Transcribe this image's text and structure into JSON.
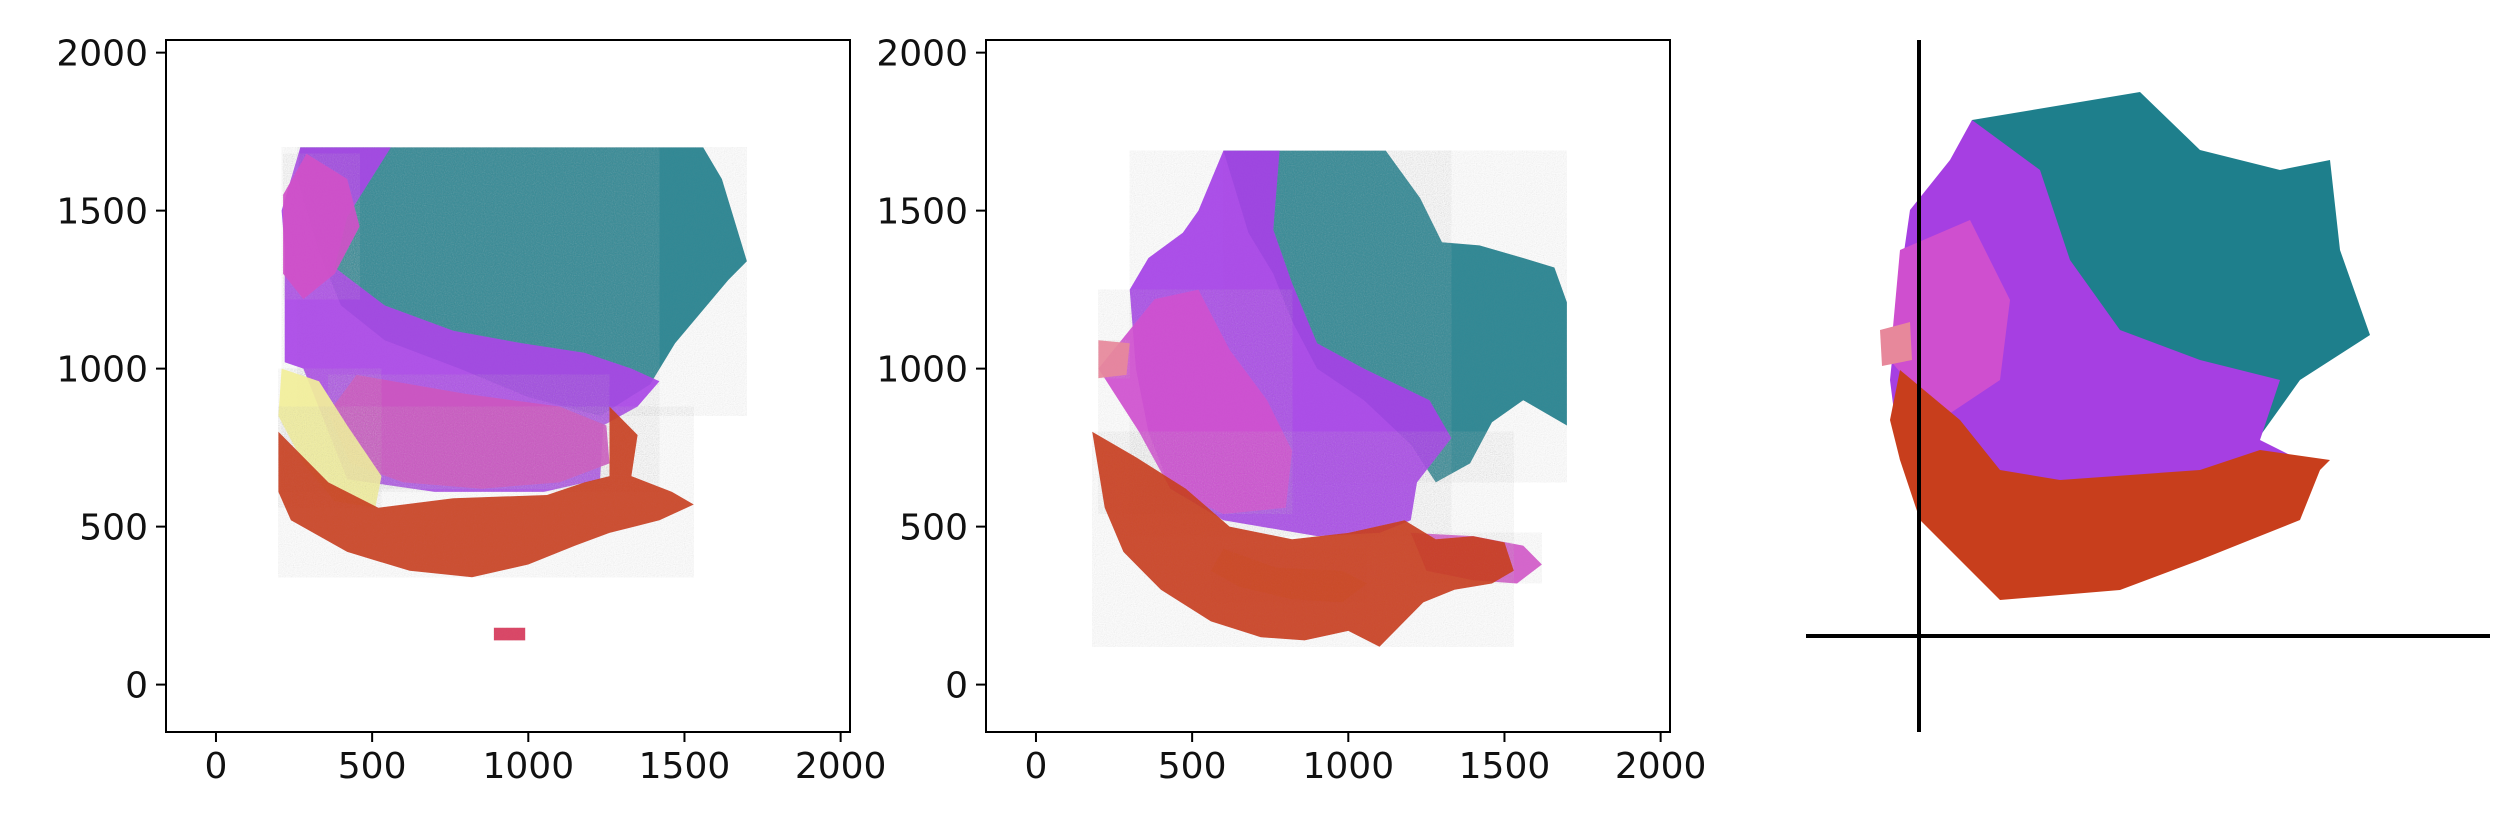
{
  "figure": {
    "background": "#ffffff"
  },
  "chart_data": [
    {
      "type": "scatter",
      "title": "",
      "xlabel": "",
      "ylabel": "",
      "xlim": [
        -160,
        2030
      ],
      "ylim": [
        -150,
        2040
      ],
      "xticks": [
        "0",
        "500",
        "1000",
        "1500",
        "2000"
      ],
      "yticks": [
        "0",
        "500",
        "1000",
        "1500",
        "2000"
      ],
      "xtick_values": [
        0,
        500,
        1000,
        1500,
        2000
      ],
      "ytick_values": [
        0,
        500,
        1000,
        1500,
        2000
      ],
      "frame": "box",
      "grid": false,
      "point_style": "hexagonal spot grid, RGB-encoded",
      "regions": [
        {
          "name": "teal",
          "color": "#1e7f8c",
          "polygon": [
            [
              270,
              1700
            ],
            [
              1560,
              1700
            ],
            [
              1620,
              1600
            ],
            [
              1700,
              1340
            ],
            [
              1640,
              1280
            ],
            [
              1470,
              1080
            ],
            [
              1390,
              950
            ],
            [
              1230,
              850
            ],
            [
              1000,
              910
            ],
            [
              780,
              1000
            ],
            [
              540,
              1090
            ],
            [
              400,
              1200
            ],
            [
              330,
              1370
            ],
            [
              260,
              1600
            ]
          ]
        },
        {
          "name": "violet",
          "color": "#a944e6",
          "polygon": [
            [
              270,
              1700
            ],
            [
              560,
              1700
            ],
            [
              420,
              1480
            ],
            [
              380,
              1320
            ],
            [
              540,
              1200
            ],
            [
              760,
              1120
            ],
            [
              980,
              1080
            ],
            [
              1180,
              1050
            ],
            [
              1330,
              1000
            ],
            [
              1420,
              960
            ],
            [
              1350,
              880
            ],
            [
              1240,
              820
            ],
            [
              1230,
              650
            ],
            [
              1050,
              610
            ],
            [
              700,
              610
            ],
            [
              420,
              650
            ],
            [
              280,
              1000
            ],
            [
              220,
              1020
            ],
            [
              220,
              1380
            ],
            [
              210,
              1500
            ]
          ]
        },
        {
          "name": "magenta",
          "color": "#d04fc8",
          "polygon": [
            [
              290,
              1680
            ],
            [
              420,
              1600
            ],
            [
              460,
              1450
            ],
            [
              380,
              1300
            ],
            [
              280,
              1220
            ],
            [
              215,
              1300
            ],
            [
              215,
              1550
            ]
          ]
        },
        {
          "name": "magenta-lower",
          "color": "#cc55bf",
          "polygon": [
            [
              450,
              980
            ],
            [
              800,
              920
            ],
            [
              1100,
              880
            ],
            [
              1250,
              820
            ],
            [
              1260,
              700
            ],
            [
              1100,
              640
            ],
            [
              850,
              620
            ],
            [
              600,
              640
            ],
            [
              430,
              700
            ],
            [
              360,
              860
            ]
          ]
        },
        {
          "name": "yellow",
          "color": "#f2ef9a",
          "polygon": [
            [
              210,
              1000
            ],
            [
              330,
              960
            ],
            [
              420,
              820
            ],
            [
              530,
              660
            ],
            [
              510,
              560
            ],
            [
              380,
              580
            ],
            [
              280,
              700
            ],
            [
              200,
              850
            ]
          ]
        },
        {
          "name": "red",
          "color": "#c8401e",
          "polygon": [
            [
              200,
              800
            ],
            [
              360,
              640
            ],
            [
              520,
              560
            ],
            [
              760,
              590
            ],
            [
              1060,
              600
            ],
            [
              1180,
              640
            ],
            [
              1260,
              660
            ],
            [
              1260,
              880
            ],
            [
              1350,
              790
            ],
            [
              1330,
              660
            ],
            [
              1460,
              610
            ],
            [
              1530,
              570
            ],
            [
              1420,
              520
            ],
            [
              1260,
              480
            ],
            [
              1150,
              440
            ],
            [
              1000,
              380
            ],
            [
              820,
              340
            ],
            [
              620,
              360
            ],
            [
              420,
              420
            ],
            [
              240,
              520
            ],
            [
              200,
              610
            ]
          ]
        },
        {
          "name": "red-small",
          "color": "#d6365a",
          "polygon": [
            [
              890,
              180
            ],
            [
              990,
              180
            ],
            [
              990,
              140
            ],
            [
              890,
              140
            ]
          ]
        }
      ]
    },
    {
      "type": "scatter",
      "title": "",
      "xlabel": "",
      "ylabel": "",
      "xlim": [
        -160,
        2030
      ],
      "ylim": [
        -150,
        2040
      ],
      "xticks": [
        "0",
        "500",
        "1000",
        "1500",
        "2000"
      ],
      "yticks": [
        "0",
        "500",
        "1000",
        "1500",
        "2000"
      ],
      "xtick_values": [
        0,
        500,
        1000,
        1500,
        2000
      ],
      "ytick_values": [
        0,
        500,
        1000,
        1500,
        2000
      ],
      "frame": "box",
      "grid": false,
      "point_style": "hexagonal spot grid, RGB-encoded",
      "regions": [
        {
          "name": "teal",
          "color": "#1e7f8c",
          "polygon": [
            [
              600,
              1690
            ],
            [
              1120,
              1690
            ],
            [
              1230,
              1540
            ],
            [
              1300,
              1400
            ],
            [
              1420,
              1390
            ],
            [
              1560,
              1350
            ],
            [
              1660,
              1320
            ],
            [
              1700,
              1210
            ],
            [
              1700,
              820
            ],
            [
              1560,
              900
            ],
            [
              1460,
              830
            ],
            [
              1390,
              700
            ],
            [
              1280,
              640
            ],
            [
              1200,
              760
            ],
            [
              1050,
              900
            ],
            [
              900,
              1000
            ],
            [
              820,
              1150
            ],
            [
              760,
              1300
            ],
            [
              680,
              1430
            ]
          ]
        },
        {
          "name": "violet",
          "color": "#a53fe6",
          "polygon": [
            [
              600,
              1690
            ],
            [
              780,
              1690
            ],
            [
              760,
              1440
            ],
            [
              820,
              1270
            ],
            [
              900,
              1080
            ],
            [
              1050,
              1000
            ],
            [
              1260,
              900
            ],
            [
              1330,
              780
            ],
            [
              1220,
              640
            ],
            [
              1200,
              520
            ],
            [
              1100,
              480
            ],
            [
              900,
              470
            ],
            [
              600,
              520
            ],
            [
              430,
              620
            ],
            [
              360,
              800
            ],
            [
              320,
              1000
            ],
            [
              300,
              1250
            ],
            [
              360,
              1350
            ],
            [
              470,
              1430
            ],
            [
              520,
              1500
            ]
          ]
        },
        {
          "name": "magenta",
          "color": "#cf4fcf",
          "polygon": [
            [
              200,
              1000
            ],
            [
              380,
              1220
            ],
            [
              520,
              1250
            ],
            [
              620,
              1060
            ],
            [
              740,
              900
            ],
            [
              820,
              740
            ],
            [
              800,
              560
            ],
            [
              600,
              540
            ],
            [
              430,
              620
            ],
            [
              330,
              800
            ]
          ]
        },
        {
          "name": "magenta-right",
          "color": "#d059c8",
          "polygon": [
            [
              1200,
              480
            ],
            [
              1400,
              470
            ],
            [
              1560,
              440
            ],
            [
              1620,
              380
            ],
            [
              1540,
              320
            ],
            [
              1400,
              330
            ],
            [
              1250,
              360
            ]
          ]
        },
        {
          "name": "yellow",
          "color": "#f2ec98",
          "polygon": [
            [
              600,
              430
            ],
            [
              770,
              370
            ],
            [
              980,
              360
            ],
            [
              1060,
              320
            ],
            [
              980,
              260
            ],
            [
              820,
              270
            ],
            [
              650,
              310
            ],
            [
              560,
              360
            ]
          ]
        },
        {
          "name": "red",
          "color": "#c83e1c",
          "polygon": [
            [
              180,
              800
            ],
            [
              320,
              720
            ],
            [
              480,
              620
            ],
            [
              620,
              500
            ],
            [
              820,
              460
            ],
            [
              1000,
              480
            ],
            [
              1180,
              520
            ],
            [
              1280,
              460
            ],
            [
              1400,
              470
            ],
            [
              1500,
              450
            ],
            [
              1530,
              360
            ],
            [
              1460,
              320
            ],
            [
              1340,
              300
            ],
            [
              1240,
              260
            ],
            [
              1180,
              200
            ],
            [
              1100,
              120
            ],
            [
              1000,
              170
            ],
            [
              860,
              140
            ],
            [
              720,
              150
            ],
            [
              560,
              200
            ],
            [
              400,
              300
            ],
            [
              280,
              420
            ],
            [
              220,
              560
            ]
          ]
        },
        {
          "name": "pink-edge",
          "color": "#e7889b",
          "polygon": [
            [
              200,
              1090
            ],
            [
              300,
              1080
            ],
            [
              290,
              980
            ],
            [
              200,
              970
            ]
          ]
        }
      ]
    }
  ],
  "panel3": {
    "kind": "unscaled scatter with crosshair axes",
    "axis_color": "#000000",
    "note": "third panel shows rotated tissue without tick labels"
  }
}
